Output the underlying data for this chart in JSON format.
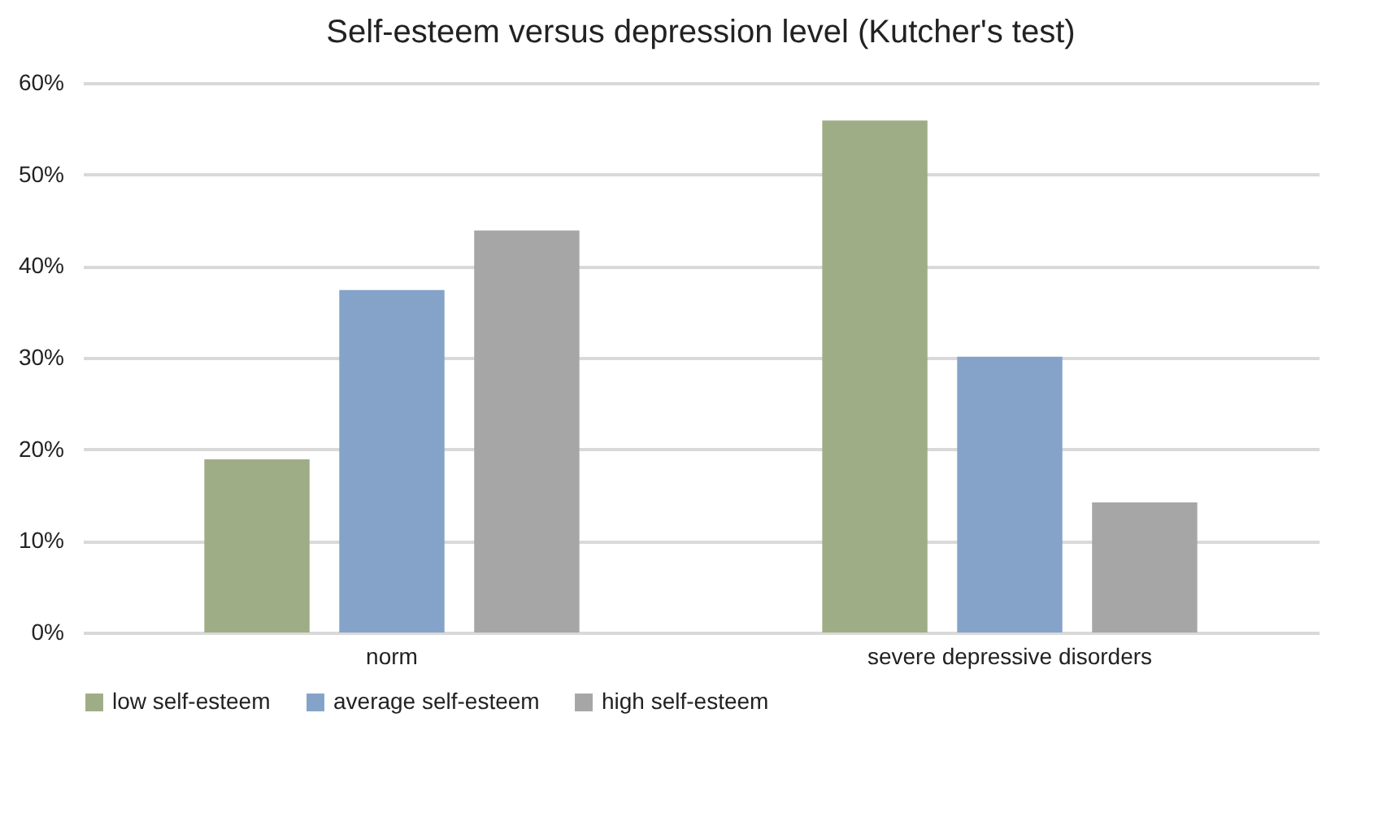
{
  "chart_data": {
    "type": "bar",
    "title": "Self-esteem versus depression level (Kutcher's test)",
    "categories": [
      "norm",
      "severe depressive disorders"
    ],
    "series": [
      {
        "name": "low self-esteem",
        "color": "#9fad87",
        "values": [
          18.9,
          55.9
        ]
      },
      {
        "name": "average self-esteem",
        "color": "#85a3c8",
        "values": [
          37.4,
          30.1
        ]
      },
      {
        "name": "high self-esteem",
        "color": "#a6a6a6",
        "values": [
          43.9,
          14.2
        ]
      }
    ],
    "ylim": [
      0,
      60
    ],
    "yticks": [
      {
        "value": 0,
        "label": "0%"
      },
      {
        "value": 10,
        "label": "10%"
      },
      {
        "value": 20,
        "label": "20%"
      },
      {
        "value": 30,
        "label": "30%"
      },
      {
        "value": 40,
        "label": "40%"
      },
      {
        "value": 50,
        "label": "50%"
      },
      {
        "value": 60,
        "label": "60%"
      }
    ],
    "grid": "y",
    "legend": "bottom"
  }
}
